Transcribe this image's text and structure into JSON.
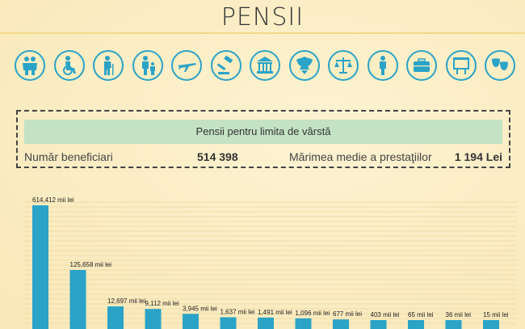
{
  "header": {
    "title": "PENSII"
  },
  "icons": [
    {
      "name": "elderly-couple-icon"
    },
    {
      "name": "wheelchair-icon"
    },
    {
      "name": "person-cane-icon"
    },
    {
      "name": "parent-child-icon"
    },
    {
      "name": "airplane-icon"
    },
    {
      "name": "judge-gavel-icon"
    },
    {
      "name": "government-building-icon"
    },
    {
      "name": "coat-of-arms-icon"
    },
    {
      "name": "scales-icon"
    },
    {
      "name": "person-icon"
    },
    {
      "name": "briefcase-icon"
    },
    {
      "name": "presentation-board-icon"
    },
    {
      "name": "theater-masks-icon"
    }
  ],
  "colors": {
    "accent": "#2aa3c7",
    "bar": "#2aa3c7",
    "panel_head": "#c4e2c4",
    "background": "#fbeec3"
  },
  "panel": {
    "heading": "Pensii pentru limita de vârstă",
    "beneficiaries_label": "Număr beneficiari",
    "beneficiaries_value": "514 398",
    "average_label": "Mărimea medie a prestaţiilor",
    "average_value": "1 194 Lei"
  },
  "chart_data": {
    "type": "bar",
    "title": "",
    "xlabel": "",
    "ylabel": "",
    "grid": true,
    "values": [
      614412,
      125658,
      12697,
      9112,
      3945,
      1637,
      1491,
      1096,
      677,
      403,
      65,
      36,
      15
    ],
    "labels": [
      "614,412 mii lei",
      "125,658 mii lei",
      "12,697 mii lei",
      "9,112 mii lei",
      "3,945 mii lei",
      "1,637 mii lei",
      "1,491 mii lei",
      "1,096 mii lei",
      "677 mii lei",
      "403 mii lei",
      "65 mii lei",
      "36 mii lei",
      "15 mii lei"
    ]
  }
}
